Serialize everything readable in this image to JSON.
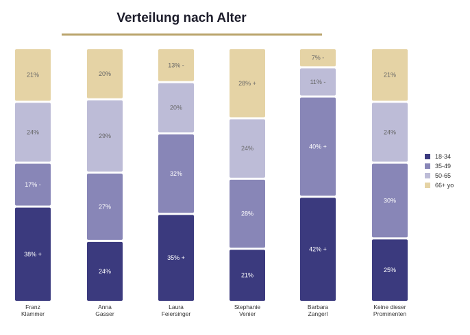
{
  "title": "Verteilung nach Alter",
  "colors": {
    "title_rule": "#b9a36a",
    "18-34": "#3b3a7e",
    "35-49": "#8886b7",
    "50-65": "#bdbcd7",
    "66+ yo": "#e5d3a5"
  },
  "chart_data": {
    "type": "bar",
    "stacked": true,
    "normalized_percent": true,
    "title": "Verteilung nach Alter",
    "legend_placement": "right",
    "categories": [
      "Franz\nKlammer",
      "Anna\nGasser",
      "Laura\nFeiersinger",
      "Stephanie\nVenier",
      "Barbara\nZangerl",
      "Keine dieser\nProminenten"
    ],
    "series": [
      {
        "name": "18-34",
        "values": [
          38,
          24,
          35,
          21,
          42,
          25
        ],
        "labels": [
          "38% +",
          "24%",
          "35% +",
          "21%",
          "42% +",
          "25%"
        ]
      },
      {
        "name": "35-49",
        "values": [
          17,
          27,
          32,
          28,
          40,
          30
        ],
        "labels": [
          "17% -",
          "27%",
          "32%",
          "28%",
          "40% +",
          "30%"
        ]
      },
      {
        "name": "50-65",
        "values": [
          24,
          29,
          20,
          24,
          11,
          24
        ],
        "labels": [
          "24%",
          "29%",
          "20%",
          "24%",
          "11% -",
          "24%"
        ]
      },
      {
        "name": "66+ yo",
        "values": [
          21,
          20,
          13,
          28,
          7,
          21
        ],
        "labels": [
          "21%",
          "20%",
          "13% -",
          "28% +",
          "7% -",
          "21%"
        ]
      }
    ]
  }
}
